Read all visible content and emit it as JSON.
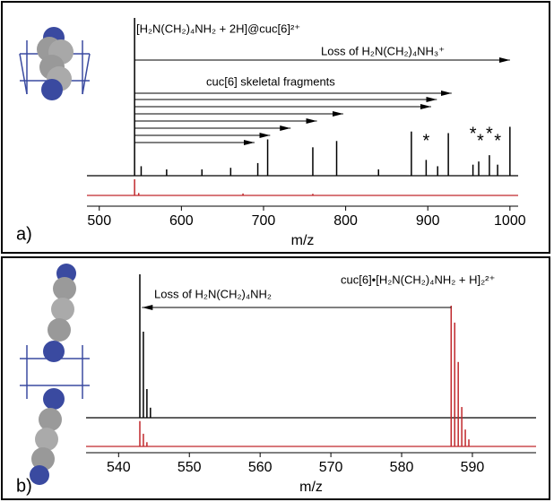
{
  "chart_data": [
    {
      "type": "spectrum",
      "panel_label": "a)",
      "xlabel": "m/z",
      "title": "[H₂N(CH₂)₄NH₂ + 2H]@cuc[6]²⁺",
      "annotations": [
        "Loss of H₂N(CH₂)₄NH₃⁺",
        "cuc[6] skeletal fragments"
      ],
      "arrow_start": 543,
      "arrow_ends": [
        1000,
        929,
        911,
        904,
        797,
        765,
        733,
        708,
        689
      ],
      "asterisks": [
        {
          "label": "*",
          "x": 898
        },
        {
          "label": "*",
          "x": 955
        },
        {
          "label": "*",
          "x": 964
        },
        {
          "label": "*",
          "x": 975
        },
        {
          "label": "*",
          "x": 985
        }
      ],
      "xlim": [
        485,
        1010
      ],
      "xticks": [
        500,
        600,
        700,
        800,
        900,
        1000
      ],
      "series": [
        {
          "color": "#000000",
          "x": [
            543,
            551,
            582,
            625,
            660,
            693,
            705,
            760,
            789,
            840,
            880,
            898,
            912,
            925,
            955,
            962,
            975,
            985,
            1000
          ],
          "values": [
            100,
            6,
            4,
            4,
            5,
            8,
            23,
            18,
            22,
            4,
            28,
            10,
            6,
            27,
            7,
            9,
            13,
            7,
            31
          ]
        },
        {
          "color": "#c0282c",
          "x": [
            543,
            548,
            675,
            760
          ],
          "values": [
            100,
            15,
            12,
            10
          ]
        }
      ]
    },
    {
      "type": "spectrum",
      "panel_label": "b)",
      "xlabel": "m/z",
      "title": "cuc[6]•[H₂N(CH₂)₄NH₂ + H]₂²⁺",
      "annotations": [
        "Loss of H₂N(CH₂)₄NH₂"
      ],
      "arrow_start": 587,
      "arrow_ends": [
        543.3
      ],
      "asterisks": [],
      "xlim": [
        535.4,
        599
      ],
      "xticks": [
        540,
        550,
        560,
        570,
        580,
        590
      ],
      "series": [
        {
          "color": "#000000",
          "x": [
            543.0,
            543.5,
            544.0,
            544.5
          ],
          "values": [
            100,
            60,
            20,
            7
          ]
        },
        {
          "color": "#c0282c",
          "x": [
            543.0,
            543.5,
            544.0,
            587.0,
            587.5,
            588.0,
            588.5,
            589.0,
            589.5
          ],
          "values": [
            18,
            9,
            3,
            100,
            88,
            60,
            28,
            12,
            5
          ]
        }
      ]
    }
  ]
}
